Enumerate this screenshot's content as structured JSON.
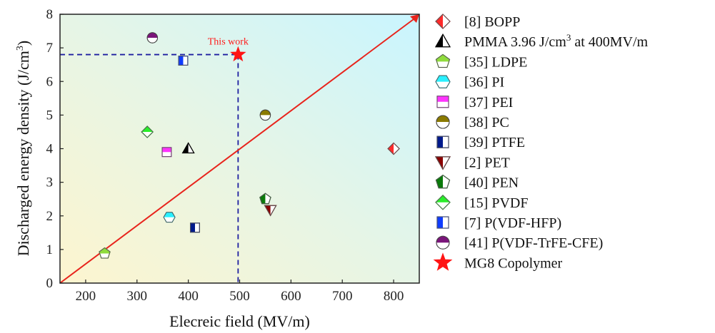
{
  "chart_data": {
    "type": "scatter",
    "xlabel": "Elecreic field (MV/m)",
    "ylabel_parts": {
      "main": "Discharged energy density (J/cm",
      "sup": "3",
      "end": ")"
    },
    "xlim": [
      150,
      850
    ],
    "ylim": [
      0,
      8
    ],
    "x_ticks": [
      200,
      300,
      400,
      500,
      600,
      700,
      800
    ],
    "y_ticks": [
      0,
      1,
      2,
      3,
      4,
      5,
      6,
      7,
      8
    ],
    "annotation": {
      "text": "This work",
      "x": 497,
      "y": 6.8
    },
    "guide_point": {
      "x": 497,
      "y": 6.8
    },
    "trend_line": {
      "from": [
        150,
        0
      ],
      "to": [
        850,
        8
      ],
      "color": "#e8241c"
    },
    "series": [
      {
        "key": "bopp",
        "legend": "[8]  BOPP",
        "x": 800,
        "y": 4.0,
        "marker": "diamond",
        "fill": "left",
        "color": "#ff2a2a"
      },
      {
        "key": "pmma",
        "legend": "PMMA  3.96 J/cm",
        "legend_sup": "3",
        "legend_tail": " at 400MV/m",
        "x": 400,
        "y": 4.0,
        "marker": "triangle",
        "fill": "left",
        "color": "#000000"
      },
      {
        "key": "ldpe",
        "legend": "[35]  LDPE",
        "x": 237,
        "y": 0.88,
        "marker": "pentagon",
        "fill": "top",
        "color": "#8fdc3c"
      },
      {
        "key": "pi",
        "legend": "[36]  PI",
        "x": 363,
        "y": 1.96,
        "marker": "hexagon",
        "fill": "top",
        "color": "#29f0ff"
      },
      {
        "key": "pei",
        "legend": "[37]  PEI",
        "x": 358,
        "y": 3.9,
        "marker": "square",
        "fill": "top",
        "color": "#ff33ff"
      },
      {
        "key": "pc",
        "legend": "[38]  PC",
        "x": 550,
        "y": 5.0,
        "marker": "circle",
        "fill": "top",
        "color": "#8a7a00"
      },
      {
        "key": "ptfe",
        "legend": "[39]  PTFE",
        "x": 413,
        "y": 1.65,
        "marker": "square",
        "fill": "left",
        "color": "#001a8c"
      },
      {
        "key": "pet",
        "legend": "[2]  PET",
        "x": 560,
        "y": 2.18,
        "marker": "invtriangle",
        "fill": "left",
        "color": "#8b0000"
      },
      {
        "key": "pen",
        "legend": "[40]  PEN",
        "x": 550,
        "y": 2.5,
        "marker": "pentagon",
        "fill": "left",
        "color": "#0a7a0a"
      },
      {
        "key": "pvdf",
        "legend": "[15]  PVDF",
        "x": 320,
        "y": 4.5,
        "marker": "diamond",
        "fill": "top",
        "color": "#2aee2a"
      },
      {
        "key": "pvdfhfp",
        "legend": "[7]  P(VDF-HFP)",
        "x": 390,
        "y": 6.62,
        "marker": "square",
        "fill": "left",
        "color": "#0f3cff"
      },
      {
        "key": "pvdftrfe",
        "legend": "[41]  P(VDF-TrFE-CFE)",
        "x": 330,
        "y": 7.3,
        "marker": "circle",
        "fill": "top",
        "color": "#7a157a"
      },
      {
        "key": "mg8",
        "legend": "MG8 Copolymer",
        "x": 497,
        "y": 6.8,
        "marker": "star",
        "fill": "full",
        "color": "#ff1414"
      }
    ]
  }
}
